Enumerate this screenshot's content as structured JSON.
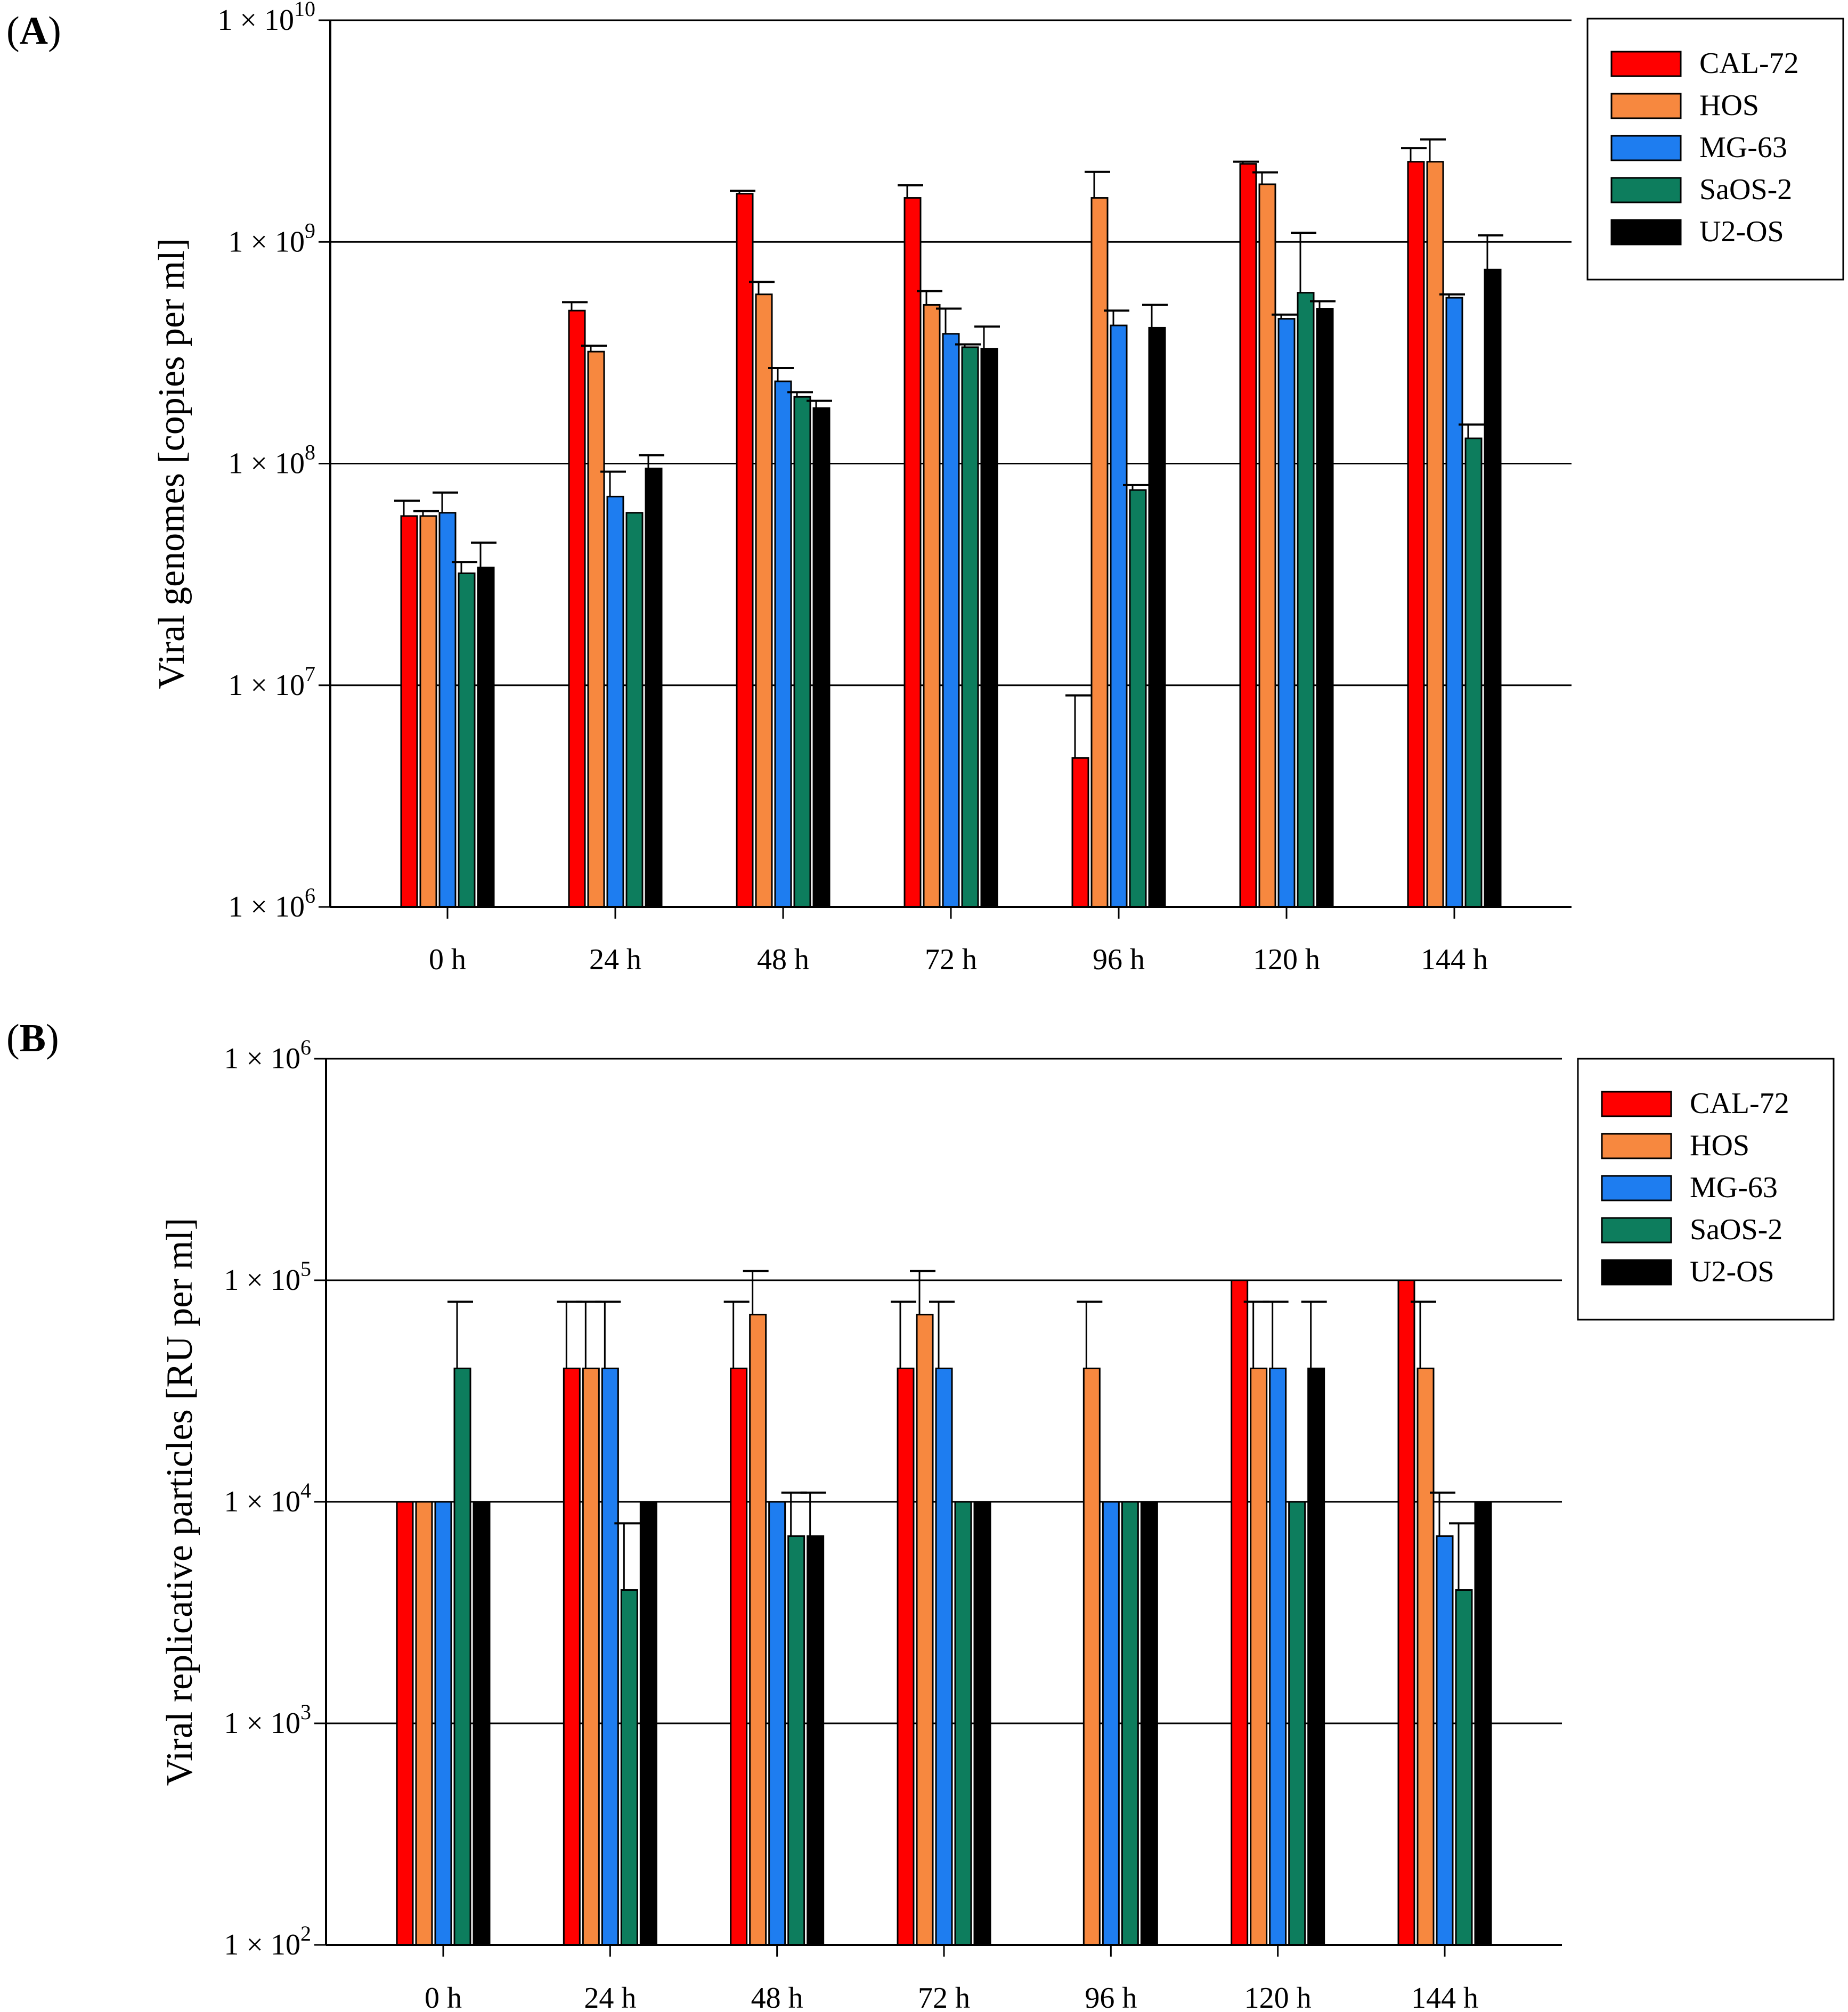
{
  "chart_data": [
    {
      "panel": "(A)",
      "panel_letter": "A",
      "type": "bar",
      "scale": "log",
      "ylabel": "Viral genomes [copies per ml]",
      "ylim": [
        1000000,
        10000000000
      ],
      "yticks": [
        {
          "value": 1000000,
          "base": "1 × 10",
          "exp": "6"
        },
        {
          "value": 10000000,
          "base": "1 × 10",
          "exp": "7"
        },
        {
          "value": 100000000,
          "base": "1 × 10",
          "exp": "8"
        },
        {
          "value": 1000000000,
          "base": "1 × 10",
          "exp": "9"
        },
        {
          "value": 10000000000,
          "base": "1 × 10",
          "exp": "10"
        }
      ],
      "grid": true,
      "legend_position": "top-right",
      "categories": [
        "0 h",
        "24 h",
        "48 h",
        "72 h",
        "96 h",
        "120 h",
        "144 h"
      ],
      "series": [
        {
          "name": "CAL-72",
          "color": "#ff0000",
          "values": [
            58000000,
            490000000,
            1650000000,
            1580000000,
            4700000,
            2250000000,
            2300000000
          ],
          "errors": [
            68000000,
            535000000,
            1700000000,
            1800000000,
            9000000,
            2300000000,
            2650000000
          ]
        },
        {
          "name": "HOS",
          "color": "#f7883f",
          "values": [
            58000000,
            320000000,
            580000000,
            520000000,
            1580000000,
            1820000000,
            2300000000
          ],
          "errors": [
            61000000,
            340000000,
            660000000,
            600000000,
            2070000000,
            2060000000,
            2900000000
          ]
        },
        {
          "name": "MG-63",
          "color": "#1e7df0",
          "values": [
            60000000,
            71000000,
            235000000,
            385000000,
            420000000,
            450000000,
            560000000
          ],
          "errors": [
            74000000,
            92000000,
            270000000,
            500000000,
            490000000,
            470000000,
            580000000
          ]
        },
        {
          "name": "SaOS-2",
          "color": "#0d7d5d",
          "values": [
            32000000,
            60000000,
            200000000,
            335000000,
            76000000,
            590000000,
            130000000
          ],
          "errors": [
            36000000,
            60000000,
            210000000,
            345000000,
            80000000,
            1100000000,
            150000000
          ]
        },
        {
          "name": "U2-OS",
          "color": "#000000",
          "values": [
            34000000,
            95000000,
            178000000,
            330000000,
            410000000,
            500000000,
            750000000
          ],
          "errors": [
            44000000,
            109000000,
            192000000,
            415000000,
            520000000,
            540000000,
            1070000000
          ]
        }
      ]
    },
    {
      "panel": "(B)",
      "panel_letter": "B",
      "type": "bar",
      "scale": "log",
      "ylabel": "Viral replicative particles [RU per ml]",
      "ylim": [
        100,
        1000000
      ],
      "yticks": [
        {
          "value": 100,
          "base": "1 × 10",
          "exp": "2"
        },
        {
          "value": 1000,
          "base": "1 × 10",
          "exp": "3"
        },
        {
          "value": 10000,
          "base": "1 × 10",
          "exp": "4"
        },
        {
          "value": 100000,
          "base": "1 × 10",
          "exp": "5"
        },
        {
          "value": 1000000,
          "base": "1 × 10",
          "exp": "6"
        }
      ],
      "grid": true,
      "legend_position": "top-right",
      "categories": [
        "0 h",
        "24 h",
        "48 h",
        "72 h",
        "96 h",
        "120 h",
        "144 h"
      ],
      "series": [
        {
          "name": "CAL-72",
          "color": "#ff0000",
          "values": [
            10000,
            40000,
            40000,
            40000,
            null,
            100000,
            100000
          ],
          "errors": [
            10000,
            80000,
            80000,
            80000,
            null,
            100000,
            100000
          ]
        },
        {
          "name": "HOS",
          "color": "#f7883f",
          "values": [
            10000,
            40000,
            70000,
            70000,
            40000,
            40000,
            40000
          ],
          "errors": [
            10000,
            80000,
            110000,
            110000,
            80000,
            80000,
            80000
          ]
        },
        {
          "name": "MG-63",
          "color": "#1e7df0",
          "values": [
            10000,
            40000,
            10000,
            40000,
            10000,
            40000,
            7000
          ],
          "errors": [
            10000,
            80000,
            10000,
            80000,
            10000,
            80000,
            11000
          ]
        },
        {
          "name": "SaOS-2",
          "color": "#0d7d5d",
          "values": [
            40000,
            4000,
            7000,
            10000,
            10000,
            10000,
            4000
          ],
          "errors": [
            80000,
            8000,
            11000,
            10000,
            10000,
            10000,
            8000
          ]
        },
        {
          "name": "U2-OS",
          "color": "#000000",
          "values": [
            10000,
            10000,
            7000,
            10000,
            10000,
            40000,
            10000
          ],
          "errors": [
            10000,
            10000,
            11000,
            10000,
            10000,
            80000,
            10000
          ]
        }
      ]
    }
  ]
}
